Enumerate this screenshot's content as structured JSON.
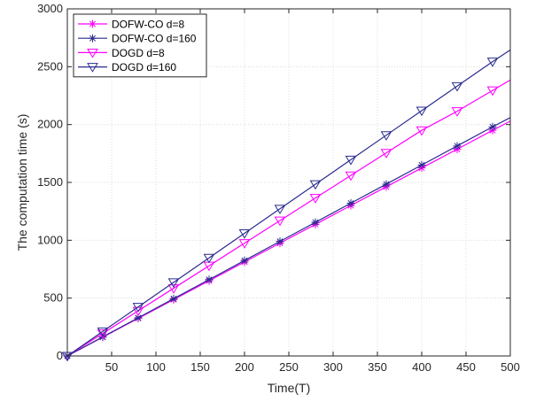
{
  "chart_data": {
    "type": "line",
    "xlabel": "Time(T)",
    "ylabel": "The computation time (s)",
    "xlim": [
      0,
      500
    ],
    "ylim": [
      0,
      3000
    ],
    "xticks": [
      50,
      100,
      150,
      200,
      250,
      300,
      350,
      400,
      450,
      500
    ],
    "yticks": [
      0,
      500,
      1000,
      1500,
      2000,
      2500,
      3000
    ],
    "grid": true,
    "box": true,
    "legend_position": "top-left",
    "x": [
      0,
      40,
      80,
      120,
      160,
      200,
      240,
      280,
      320,
      360,
      400,
      440,
      480
    ],
    "series": [
      {
        "name": "DOFW-CO d=8",
        "color": "#ff00ff",
        "marker": "asterisk",
        "values": [
          0,
          162,
          325,
          487,
          650,
          812,
          975,
          1137,
          1300,
          1462,
          1625,
          1787,
          1950
        ],
        "end": 2030
      },
      {
        "name": "DOFW-CO d=160",
        "color": "#2a2c8e",
        "marker": "asterisk",
        "values": [
          0,
          165,
          330,
          495,
          660,
          825,
          990,
          1155,
          1320,
          1485,
          1650,
          1815,
          1980
        ],
        "end": 2060
      },
      {
        "name": "DOGD d=8",
        "color": "#ff00ff",
        "marker": "triangle-down",
        "values": [
          0,
          195,
          390,
          585,
          780,
          975,
          1170,
          1365,
          1560,
          1755,
          1950,
          2115,
          2295
        ],
        "end": 2385
      },
      {
        "name": "DOGD d=160",
        "color": "#2a2c8e",
        "marker": "triangle-down",
        "values": [
          0,
          212,
          424,
          636,
          848,
          1060,
          1272,
          1484,
          1696,
          1908,
          2120,
          2332,
          2544
        ],
        "end": 2645
      }
    ]
  }
}
